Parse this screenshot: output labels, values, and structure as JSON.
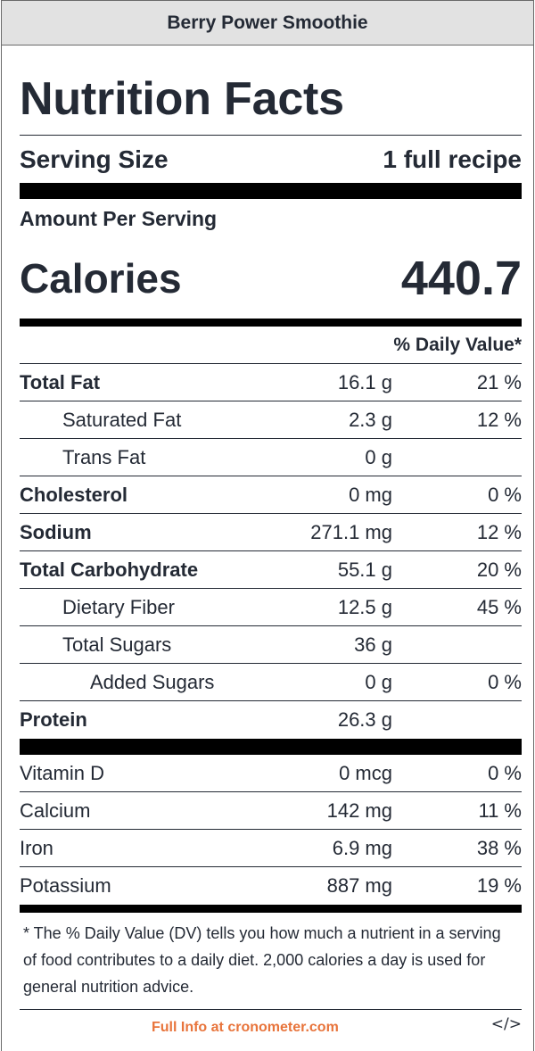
{
  "header": {
    "title": "Berry Power Smoothie"
  },
  "label": {
    "heading": "Nutrition Facts",
    "serving_size_label": "Serving Size",
    "serving_size_value": "1 full recipe",
    "amount_per_serving": "Amount Per Serving",
    "calories_label": "Calories",
    "calories_value": "440.7",
    "daily_value_header": "% Daily Value*"
  },
  "nutrients": [
    {
      "name": "Total Fat",
      "amount": "16.1 g",
      "dv": "21 %"
    },
    {
      "name": "Saturated Fat",
      "amount": "2.3 g",
      "dv": "12 %"
    },
    {
      "name": "Trans Fat",
      "amount": "0 g",
      "dv": ""
    },
    {
      "name": "Cholesterol",
      "amount": "0 mg",
      "dv": "0 %"
    },
    {
      "name": "Sodium",
      "amount": "271.1 mg",
      "dv": "12 %"
    },
    {
      "name": "Total Carbohydrate",
      "amount": "55.1 g",
      "dv": "20 %"
    },
    {
      "name": "Dietary Fiber",
      "amount": "12.5 g",
      "dv": "45 %"
    },
    {
      "name": "Total Sugars",
      "amount": "36 g",
      "dv": ""
    },
    {
      "name": "Added Sugars",
      "amount": "0 g",
      "dv": "0 %"
    },
    {
      "name": "Protein",
      "amount": "26.3 g",
      "dv": ""
    }
  ],
  "micronutrients": [
    {
      "name": "Vitamin D",
      "amount": "0 mcg",
      "dv": "0 %"
    },
    {
      "name": "Calcium",
      "amount": "142 mg",
      "dv": "11 %"
    },
    {
      "name": "Iron",
      "amount": "6.9 mg",
      "dv": "38 %"
    },
    {
      "name": "Potassium",
      "amount": "887 mg",
      "dv": "19 %"
    }
  ],
  "footnote": "* The % Daily Value (DV) tells you how much a nutrient in a serving of food contributes to a daily diet. 2,000 calories a day is used for general nutrition advice.",
  "footer": {
    "link_text": "Full Info at cronometer.com",
    "embed_label": "</>"
  },
  "colors": {
    "link": "#e8743b",
    "text": "#242a35",
    "title_bar": "#e2e2e2"
  }
}
